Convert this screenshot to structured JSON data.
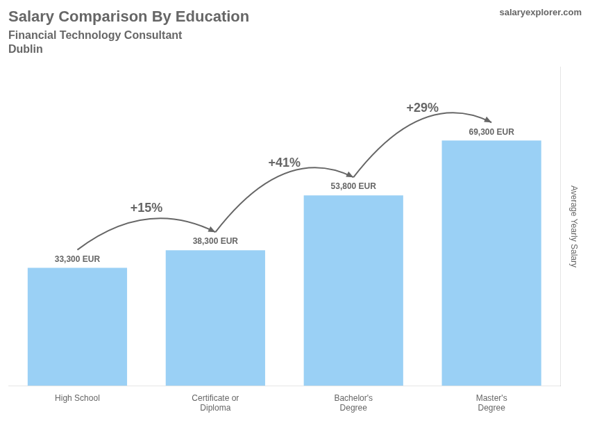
{
  "chart_data": {
    "type": "bar",
    "title": "Salary Comparison By Education",
    "subtitle": [
      "Financial Technology Consultant",
      "Dublin"
    ],
    "watermark": "salaryexplorer.com",
    "ylabel": "Average Yearly Salary",
    "categories": [
      "High School",
      "Certificate or\nDiploma",
      "Bachelor's\nDegree",
      "Master's\nDegree"
    ],
    "values": [
      33300,
      38300,
      53800,
      69300
    ],
    "value_labels": [
      "33,300 EUR",
      "38,300 EUR",
      "53,800 EUR",
      "69,300 EUR"
    ],
    "data_labels": true,
    "annotations": [
      "+15%",
      "+41%",
      "+29%"
    ],
    "ylim": [
      0,
      90000
    ],
    "grid": false,
    "tick_labels": "x"
  }
}
